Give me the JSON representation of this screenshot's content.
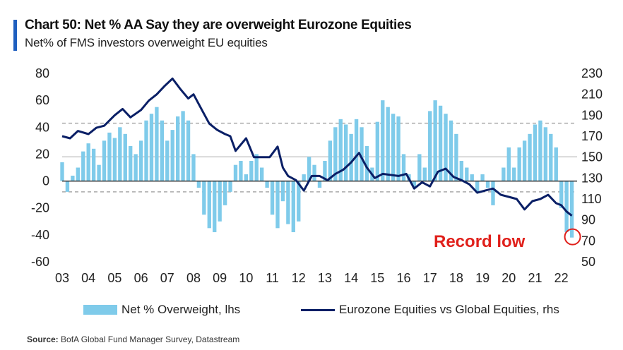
{
  "header": {
    "title": "Chart 50: Net % AA Say they are overweight Eurozone Equities",
    "subtitle": "Net% of FMS investors overweight EU equities"
  },
  "legend": {
    "bars_label": "Net % Overweight, lhs",
    "line_label": "Eurozone Equities vs Global Equities, rhs"
  },
  "source": {
    "label": "Source:",
    "text": "BofA Global Fund Manager Survey, Datastream"
  },
  "annotation": {
    "text": "Record low",
    "color": "#e0201b"
  },
  "colors": {
    "bars": "#7fcbea",
    "line": "#0a1f66",
    "accent": "#1f5fbf",
    "reference_lines": "#aaaaaa",
    "annotation": "#e0201b"
  },
  "chart_data": {
    "type": "bar+line",
    "x_tick_labels": [
      "03",
      "04",
      "05",
      "06",
      "07",
      "08",
      "09",
      "10",
      "11",
      "12",
      "13",
      "14",
      "15",
      "16",
      "17",
      "18",
      "19",
      "20",
      "21",
      "22"
    ],
    "left_axis": {
      "ticks": [
        "80",
        "60",
        "40",
        "20",
        "0",
        "-20",
        "-40",
        "-60"
      ],
      "ylim": [
        -60,
        80
      ]
    },
    "right_axis": {
      "ticks": [
        "230",
        "210",
        "190",
        "170",
        "150",
        "130",
        "110",
        "90",
        "70",
        "50"
      ],
      "ylim": [
        50,
        230
      ]
    },
    "reference_lines_lhs": {
      "dashed": [
        43,
        -8
      ],
      "solid": [
        0
      ],
      "grey_solid": [
        18
      ]
    },
    "xlim": [
      2003.0,
      2022.6
    ],
    "bars": {
      "name": "Net % Overweight, lhs",
      "axis": "lhs",
      "x": [
        2003.0,
        2003.2,
        2003.4,
        2003.6,
        2003.8,
        2004.0,
        2004.2,
        2004.4,
        2004.6,
        2004.8,
        2005.0,
        2005.2,
        2005.4,
        2005.6,
        2005.8,
        2006.0,
        2006.2,
        2006.4,
        2006.6,
        2006.8,
        2007.0,
        2007.2,
        2007.4,
        2007.6,
        2007.8,
        2008.0,
        2008.2,
        2008.4,
        2008.6,
        2008.8,
        2009.0,
        2009.2,
        2009.4,
        2009.6,
        2009.8,
        2010.0,
        2010.2,
        2010.4,
        2010.6,
        2010.8,
        2011.0,
        2011.2,
        2011.4,
        2011.6,
        2011.8,
        2012.0,
        2012.2,
        2012.4,
        2012.6,
        2012.8,
        2013.0,
        2013.2,
        2013.4,
        2013.6,
        2013.8,
        2014.0,
        2014.2,
        2014.4,
        2014.6,
        2014.8,
        2015.0,
        2015.2,
        2015.4,
        2015.6,
        2015.8,
        2016.0,
        2016.2,
        2016.4,
        2016.6,
        2016.8,
        2017.0,
        2017.2,
        2017.4,
        2017.6,
        2017.8,
        2018.0,
        2018.2,
        2018.4,
        2018.6,
        2018.8,
        2019.0,
        2019.2,
        2019.4,
        2019.6,
        2019.8,
        2020.0,
        2020.2,
        2020.4,
        2020.6,
        2020.8,
        2021.0,
        2021.2,
        2021.4,
        2021.6,
        2021.8,
        2022.0,
        2022.2,
        2022.4
      ],
      "values": [
        14,
        -8,
        4,
        10,
        22,
        28,
        24,
        12,
        30,
        36,
        32,
        40,
        35,
        26,
        20,
        30,
        45,
        50,
        55,
        45,
        30,
        38,
        48,
        52,
        45,
        20,
        -5,
        -25,
        -35,
        -38,
        -30,
        -18,
        -8,
        12,
        15,
        5,
        15,
        20,
        10,
        -5,
        -25,
        -35,
        -15,
        -32,
        -38,
        -30,
        5,
        18,
        12,
        -5,
        15,
        30,
        40,
        46,
        42,
        35,
        46,
        40,
        26,
        10,
        44,
        60,
        55,
        50,
        48,
        20,
        5,
        -5,
        20,
        10,
        52,
        60,
        56,
        50,
        45,
        35,
        15,
        10,
        5,
        -8,
        5,
        -5,
        -18,
        0,
        10,
        25,
        10,
        25,
        30,
        35,
        42,
        45,
        40,
        35,
        25,
        -20,
        -38,
        -42
      ],
      "min_value": {
        "x": 2022.4,
        "value": -42,
        "label": "Record low"
      }
    },
    "line": {
      "name": "Eurozone Equities vs Global Equities, rhs",
      "axis": "rhs",
      "x": [
        2003.0,
        2003.3,
        2003.6,
        2004.0,
        2004.3,
        2004.6,
        2005.0,
        2005.3,
        2005.6,
        2006.0,
        2006.3,
        2006.6,
        2006.9,
        2007.2,
        2007.5,
        2007.8,
        2008.0,
        2008.3,
        2008.6,
        2008.9,
        2009.2,
        2009.4,
        2009.6,
        2010.0,
        2010.3,
        2010.6,
        2010.9,
        2011.2,
        2011.4,
        2011.6,
        2011.9,
        2012.2,
        2012.5,
        2012.8,
        2013.1,
        2013.4,
        2013.7,
        2014.0,
        2014.3,
        2014.6,
        2014.9,
        2015.2,
        2015.5,
        2015.8,
        2016.1,
        2016.4,
        2016.7,
        2017.0,
        2017.3,
        2017.6,
        2017.9,
        2018.2,
        2018.5,
        2018.8,
        2019.1,
        2019.4,
        2019.7,
        2020.0,
        2020.3,
        2020.6,
        2020.9,
        2021.2,
        2021.5,
        2021.8,
        2022.0,
        2022.2,
        2022.4
      ],
      "values": [
        170,
        168,
        175,
        172,
        178,
        180,
        190,
        196,
        188,
        195,
        204,
        210,
        218,
        225,
        215,
        206,
        210,
        196,
        182,
        176,
        172,
        170,
        156,
        168,
        150,
        150,
        150,
        160,
        140,
        132,
        128,
        118,
        132,
        132,
        128,
        134,
        138,
        145,
        154,
        140,
        130,
        134,
        133,
        132,
        134,
        120,
        126,
        122,
        136,
        139,
        131,
        128,
        124,
        116,
        118,
        120,
        114,
        112,
        110,
        100,
        108,
        110,
        114,
        106,
        104,
        98,
        94
      ]
    }
  }
}
